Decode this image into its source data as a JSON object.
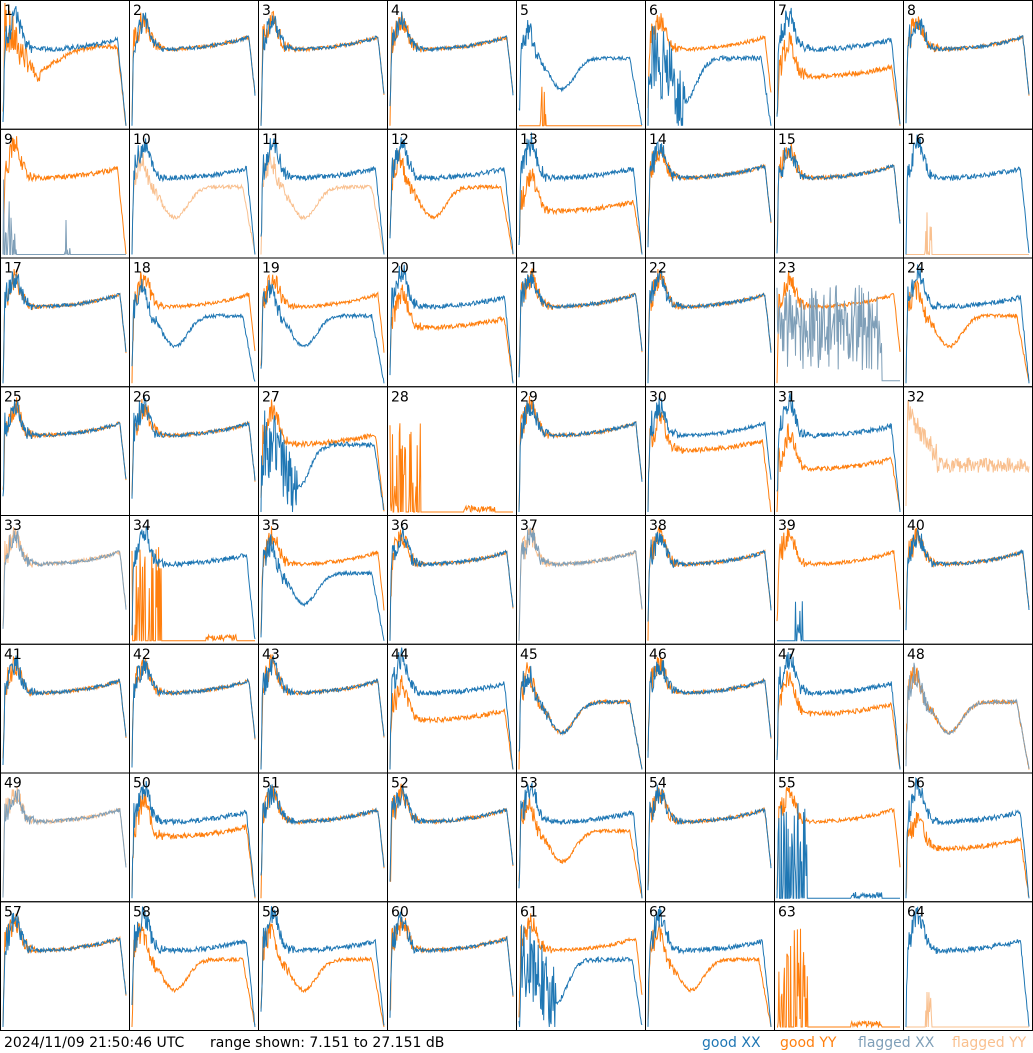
{
  "footer": {
    "timestamp": "2024/11/09 21:50:46 UTC",
    "range": "range shown: 7.151 to 27.151 dB",
    "legend": {
      "good_xx": {
        "label": "good XX",
        "color": "#1f77b4"
      },
      "good_yy": {
        "label": "good YY",
        "color": "#ff7f0e"
      },
      "flagged_xx": {
        "label": "flagged XX",
        "color": "#7f9fb8"
      },
      "flagged_yy": {
        "label": "flagged YY",
        "color": "#f9c08f"
      }
    }
  },
  "chart_data": {
    "type": "line",
    "layout": "8x8 small multiples",
    "y_range_db": [
      7.151,
      27.151
    ],
    "series_types": [
      "good XX",
      "good YY",
      "flagged XX",
      "flagged YY"
    ],
    "panels": [
      {
        "id": "1",
        "xx": "std",
        "yy": "dip",
        "yy_lvl": 0.45
      },
      {
        "id": "2",
        "xx": "flat",
        "yy": "flat"
      },
      {
        "id": "3",
        "xx": "flat",
        "yy": "flat"
      },
      {
        "id": "4",
        "xx": "flat",
        "yy": "flat"
      },
      {
        "id": "5",
        "xx": "bowl",
        "yy": "low"
      },
      {
        "id": "6",
        "xx": "bowl_noisy",
        "yy": "flat"
      },
      {
        "id": "7",
        "xx": "std",
        "yy": "std",
        "yy_lvl": 0.4
      },
      {
        "id": "8",
        "xx": "flat",
        "yy": "flat"
      },
      {
        "id": "9",
        "xx": "flagged_spikes",
        "yy": "std"
      },
      {
        "id": "10",
        "xx": "std",
        "yy": "flagged_bowl"
      },
      {
        "id": "11",
        "xx": "std",
        "yy": "flagged_bowl"
      },
      {
        "id": "12",
        "xx": "std",
        "yy": "bowl"
      },
      {
        "id": "13",
        "xx": "std",
        "yy": "std",
        "yy_lvl": 0.35
      },
      {
        "id": "14",
        "xx": "flat",
        "yy": "flat"
      },
      {
        "id": "15",
        "xx": "flat",
        "yy": "flat"
      },
      {
        "id": "16",
        "xx": "std",
        "yy": "flagged_low"
      },
      {
        "id": "17",
        "xx": "flat",
        "yy": "flat"
      },
      {
        "id": "18",
        "xx": "bowl",
        "yy": "flat"
      },
      {
        "id": "19",
        "xx": "bowl",
        "yy": "flat"
      },
      {
        "id": "20",
        "xx": "std",
        "yy": "std",
        "yy_lvl": 0.45
      },
      {
        "id": "21",
        "xx": "flat",
        "yy": "flat"
      },
      {
        "id": "22",
        "xx": "flat",
        "yy": "flat"
      },
      {
        "id": "23",
        "xx": "flagged_noise",
        "yy": "flat"
      },
      {
        "id": "24",
        "xx": "std",
        "yy": "bowl"
      },
      {
        "id": "25",
        "xx": "flat",
        "yy": "flat"
      },
      {
        "id": "26",
        "xx": "flat",
        "yy": "flat"
      },
      {
        "id": "27",
        "xx": "bowl_noisy",
        "yy": "std",
        "yy_lvl": 0.55
      },
      {
        "id": "28",
        "xx": "none",
        "yy": "spikes"
      },
      {
        "id": "29",
        "xx": "flat",
        "yy": "flat"
      },
      {
        "id": "30",
        "xx": "flat",
        "yy": "std",
        "yy_lvl": 0.5
      },
      {
        "id": "31",
        "xx": "std",
        "yy": "std",
        "yy_lvl": 0.35
      },
      {
        "id": "32",
        "xx": "none",
        "yy": "flagged_mid"
      },
      {
        "id": "33",
        "xx": "flagged_flat",
        "yy": "flagged_flat"
      },
      {
        "id": "34",
        "xx": "std",
        "yy": "spikes"
      },
      {
        "id": "35",
        "xx": "bowl",
        "yy": "flat"
      },
      {
        "id": "36",
        "xx": "flat",
        "yy": "flat"
      },
      {
        "id": "37",
        "xx": "flagged_flat",
        "yy": "flagged_flat"
      },
      {
        "id": "38",
        "xx": "flat",
        "yy": "flat"
      },
      {
        "id": "39",
        "xx": "low",
        "yy": "flat"
      },
      {
        "id": "40",
        "xx": "flat",
        "yy": "flat"
      },
      {
        "id": "41",
        "xx": "flat",
        "yy": "flat"
      },
      {
        "id": "42",
        "xx": "flat",
        "yy": "flat"
      },
      {
        "id": "43",
        "xx": "flat",
        "yy": "flat"
      },
      {
        "id": "44",
        "xx": "std",
        "yy": "std",
        "yy_lvl": 0.4
      },
      {
        "id": "45",
        "xx": "bowl",
        "yy": "bowl"
      },
      {
        "id": "46",
        "xx": "flat",
        "yy": "flat"
      },
      {
        "id": "47",
        "xx": "std",
        "yy": "std",
        "yy_lvl": 0.45
      },
      {
        "id": "48",
        "xx": "flagged_bowl",
        "yy": "bowl"
      },
      {
        "id": "49",
        "xx": "flagged_flat",
        "yy": "flagged_flat"
      },
      {
        "id": "50",
        "xx": "std",
        "yy": "std",
        "yy_lvl": 0.5
      },
      {
        "id": "51",
        "xx": "flat",
        "yy": "flat"
      },
      {
        "id": "52",
        "xx": "flat",
        "yy": "flat"
      },
      {
        "id": "53",
        "xx": "std",
        "yy": "bowl"
      },
      {
        "id": "54",
        "xx": "flat",
        "yy": "flat"
      },
      {
        "id": "55",
        "xx": "spikes",
        "yy": "flat"
      },
      {
        "id": "56",
        "xx": "std",
        "yy": "std",
        "yy_lvl": 0.4
      },
      {
        "id": "57",
        "xx": "flat",
        "yy": "flat"
      },
      {
        "id": "58",
        "xx": "std",
        "yy": "bowl"
      },
      {
        "id": "59",
        "xx": "std",
        "yy": "bowl"
      },
      {
        "id": "60",
        "xx": "flat",
        "yy": "flat"
      },
      {
        "id": "61",
        "xx": "bowl_noisy",
        "yy": "flat"
      },
      {
        "id": "62",
        "xx": "std",
        "yy": "bowl"
      },
      {
        "id": "63",
        "xx": "none",
        "yy": "spikes"
      },
      {
        "id": "64",
        "xx": "std",
        "yy": "flagged_low"
      }
    ]
  }
}
